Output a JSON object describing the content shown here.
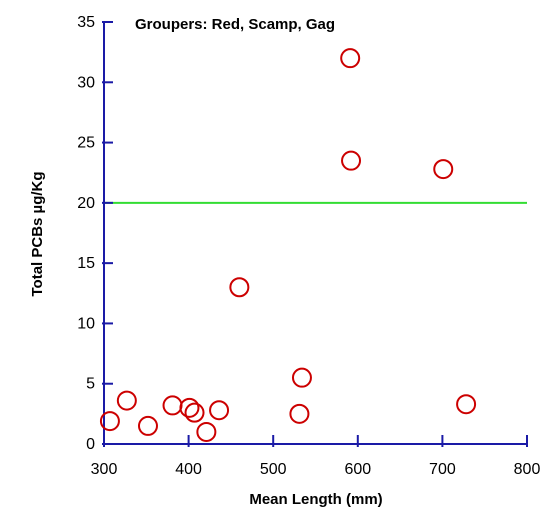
{
  "chart_data": {
    "type": "scatter",
    "title": "Groupers: Red, Scamp, Gag",
    "xlabel": "Mean Length (mm)",
    "ylabel": "Total PCBs µg/Kg",
    "xlim": [
      300,
      800
    ],
    "ylim": [
      0,
      35
    ],
    "xticks": [
      300,
      400,
      500,
      600,
      700,
      800
    ],
    "yticks": [
      0,
      5,
      10,
      15,
      20,
      25,
      30,
      35
    ],
    "grid": false,
    "reference_line": {
      "y": 20,
      "color": "#33dd33"
    },
    "marker": {
      "shape": "open-circle",
      "color": "#cc0000"
    },
    "axis_color": "#1a1aa6",
    "points": [
      {
        "x": 307,
        "y": 1.9
      },
      {
        "x": 327,
        "y": 3.6
      },
      {
        "x": 352,
        "y": 1.5
      },
      {
        "x": 381,
        "y": 3.2
      },
      {
        "x": 401,
        "y": 3.0
      },
      {
        "x": 407,
        "y": 2.6
      },
      {
        "x": 421,
        "y": 1.0
      },
      {
        "x": 436,
        "y": 2.8
      },
      {
        "x": 460,
        "y": 13.0
      },
      {
        "x": 531,
        "y": 2.5
      },
      {
        "x": 534,
        "y": 5.5
      },
      {
        "x": 591,
        "y": 32.0
      },
      {
        "x": 592,
        "y": 23.5
      },
      {
        "x": 701,
        "y": 22.8
      },
      {
        "x": 728,
        "y": 3.3
      }
    ]
  }
}
